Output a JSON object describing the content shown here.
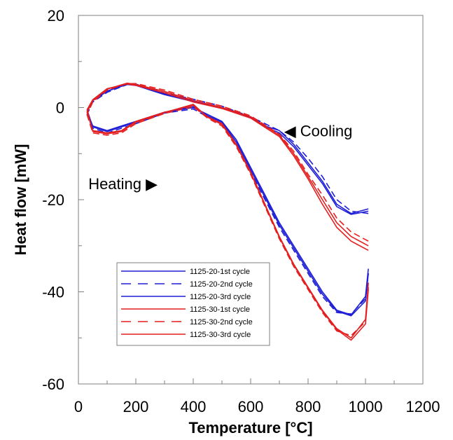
{
  "chart_data": {
    "type": "line",
    "title": "",
    "xlabel": "Temperature [°C]",
    "ylabel": "Heat flow [mW]",
    "xlim": [
      0,
      1200
    ],
    "ylim": [
      -60,
      20
    ],
    "x_ticks": [
      "0",
      "200",
      "400",
      "600",
      "800",
      "1000",
      "1200"
    ],
    "y_ticks": [
      "-60",
      "-40",
      "-20",
      "0",
      "20"
    ],
    "grid": false,
    "legend_placement": "lower-left",
    "annotations": [
      {
        "text": "Cooling",
        "arrow": "◀",
        "x": 770,
        "y": -5
      },
      {
        "text": "Heating",
        "arrow": "▶",
        "x": 620,
        "y": -16.5
      }
    ],
    "series": [
      {
        "name": "1125-20-1st cycle",
        "color": "#1f1fd6",
        "dash": "solid",
        "heating": [
          [
            30,
            -1
          ],
          [
            50,
            -4
          ],
          [
            100,
            -5
          ],
          [
            150,
            -4
          ],
          [
            200,
            -3
          ],
          [
            300,
            -1
          ],
          [
            400,
            0
          ],
          [
            450,
            -1.5
          ],
          [
            500,
            -3
          ],
          [
            550,
            -7
          ],
          [
            600,
            -13
          ],
          [
            650,
            -19
          ],
          [
            700,
            -25
          ],
          [
            750,
            -30
          ],
          [
            800,
            -35
          ],
          [
            850,
            -40
          ],
          [
            900,
            -44
          ],
          [
            950,
            -45
          ],
          [
            1000,
            -41
          ],
          [
            1010,
            -35
          ]
        ],
        "cooling": [
          [
            1010,
            -22
          ],
          [
            950,
            -23
          ],
          [
            900,
            -21
          ],
          [
            850,
            -16
          ],
          [
            800,
            -12
          ],
          [
            750,
            -8
          ],
          [
            700,
            -5
          ],
          [
            650,
            -4
          ],
          [
            600,
            -2
          ],
          [
            500,
            0
          ],
          [
            400,
            1.5
          ],
          [
            300,
            3
          ],
          [
            200,
            5
          ],
          [
            170,
            5.2
          ],
          [
            100,
            3.5
          ],
          [
            50,
            1.5
          ],
          [
            30,
            -1
          ]
        ]
      },
      {
        "name": "1125-20-2nd cycle",
        "color": "#1f1fd6",
        "dash": "dashed",
        "heating": [
          [
            30,
            -1.5
          ],
          [
            50,
            -4.5
          ],
          [
            100,
            -5.5
          ],
          [
            150,
            -4.5
          ],
          [
            200,
            -3.5
          ],
          [
            300,
            -1.2
          ],
          [
            400,
            -0.3
          ],
          [
            450,
            -2
          ],
          [
            500,
            -3.5
          ],
          [
            550,
            -8
          ],
          [
            600,
            -14
          ],
          [
            650,
            -20
          ],
          [
            700,
            -26
          ],
          [
            750,
            -31
          ],
          [
            800,
            -36
          ],
          [
            850,
            -41
          ],
          [
            900,
            -44.5
          ],
          [
            950,
            -44.8
          ],
          [
            1000,
            -41.5
          ],
          [
            1010,
            -36
          ]
        ],
        "cooling": [
          [
            1010,
            -23
          ],
          [
            950,
            -22.5
          ],
          [
            900,
            -20
          ],
          [
            850,
            -15
          ],
          [
            800,
            -11
          ],
          [
            750,
            -7.5
          ],
          [
            700,
            -5
          ],
          [
            650,
            -3.5
          ],
          [
            600,
            -2
          ],
          [
            500,
            0.3
          ],
          [
            400,
            1.8
          ],
          [
            300,
            3.2
          ],
          [
            200,
            5.1
          ],
          [
            170,
            5
          ],
          [
            100,
            3.3
          ],
          [
            50,
            1.2
          ],
          [
            30,
            -1.5
          ]
        ]
      },
      {
        "name": "1125-20-3rd cycle",
        "color": "#1f1fd6",
        "dash": "solid",
        "heating": [
          [
            30,
            -0.5
          ],
          [
            50,
            -4.2
          ],
          [
            100,
            -5.2
          ],
          [
            150,
            -4.2
          ],
          [
            200,
            -3.2
          ],
          [
            300,
            -1
          ],
          [
            400,
            0.2
          ],
          [
            450,
            -1.8
          ],
          [
            500,
            -3.2
          ],
          [
            550,
            -7.5
          ],
          [
            600,
            -13.5
          ],
          [
            650,
            -19.5
          ],
          [
            700,
            -25.5
          ],
          [
            750,
            -30.5
          ],
          [
            800,
            -35.5
          ],
          [
            850,
            -40.5
          ],
          [
            900,
            -44.2
          ],
          [
            950,
            -45.2
          ],
          [
            1000,
            -42
          ],
          [
            1010,
            -36
          ]
        ],
        "cooling": [
          [
            1010,
            -22.5
          ],
          [
            950,
            -23.2
          ],
          [
            900,
            -21.5
          ],
          [
            850,
            -16.5
          ],
          [
            800,
            -12.5
          ],
          [
            750,
            -8.5
          ],
          [
            700,
            -5.5
          ],
          [
            650,
            -4.2
          ],
          [
            600,
            -2.2
          ],
          [
            500,
            -0.2
          ],
          [
            400,
            1.3
          ],
          [
            300,
            2.8
          ],
          [
            200,
            4.8
          ],
          [
            170,
            5
          ],
          [
            100,
            3.6
          ],
          [
            50,
            1.6
          ],
          [
            30,
            -0.5
          ]
        ]
      },
      {
        "name": "1125-30-1st cycle",
        "color": "#e41f1f",
        "dash": "solid",
        "heating": [
          [
            30,
            -1
          ],
          [
            50,
            -5
          ],
          [
            100,
            -5.5
          ],
          [
            150,
            -5
          ],
          [
            200,
            -3
          ],
          [
            300,
            -1
          ],
          [
            400,
            0.5
          ],
          [
            450,
            -2
          ],
          [
            500,
            -3.5
          ],
          [
            550,
            -8
          ],
          [
            600,
            -14
          ],
          [
            650,
            -21
          ],
          [
            700,
            -28
          ],
          [
            750,
            -34
          ],
          [
            800,
            -39
          ],
          [
            850,
            -44
          ],
          [
            900,
            -48
          ],
          [
            950,
            -50
          ],
          [
            1000,
            -46
          ],
          [
            1010,
            -38
          ]
        ],
        "cooling": [
          [
            1010,
            -30
          ],
          [
            950,
            -28
          ],
          [
            900,
            -25
          ],
          [
            850,
            -20
          ],
          [
            800,
            -15
          ],
          [
            750,
            -10
          ],
          [
            700,
            -6
          ],
          [
            650,
            -4
          ],
          [
            600,
            -2
          ],
          [
            500,
            0
          ],
          [
            400,
            1.5
          ],
          [
            300,
            3.5
          ],
          [
            200,
            5
          ],
          [
            170,
            5.3
          ],
          [
            100,
            4
          ],
          [
            50,
            1.5
          ],
          [
            30,
            -1
          ]
        ]
      },
      {
        "name": "1125-30-2nd cycle",
        "color": "#e41f1f",
        "dash": "dashed",
        "heating": [
          [
            30,
            -1.5
          ],
          [
            50,
            -5.5
          ],
          [
            100,
            -6
          ],
          [
            150,
            -5.5
          ],
          [
            200,
            -3.5
          ],
          [
            300,
            -1.3
          ],
          [
            400,
            0.2
          ],
          [
            450,
            -2.3
          ],
          [
            500,
            -4
          ],
          [
            550,
            -8.5
          ],
          [
            600,
            -14.5
          ],
          [
            650,
            -21.5
          ],
          [
            700,
            -28.5
          ],
          [
            750,
            -34.5
          ],
          [
            800,
            -39.5
          ],
          [
            850,
            -44.5
          ],
          [
            900,
            -48.5
          ],
          [
            950,
            -49.5
          ],
          [
            1000,
            -46.5
          ],
          [
            1010,
            -39
          ]
        ],
        "cooling": [
          [
            1010,
            -29
          ],
          [
            950,
            -27
          ],
          [
            900,
            -24
          ],
          [
            850,
            -19
          ],
          [
            800,
            -14.5
          ],
          [
            750,
            -9.5
          ],
          [
            700,
            -5.8
          ],
          [
            650,
            -3.8
          ],
          [
            600,
            -1.8
          ],
          [
            500,
            0.3
          ],
          [
            400,
            1.8
          ],
          [
            300,
            3.8
          ],
          [
            200,
            5.2
          ],
          [
            170,
            5.2
          ],
          [
            100,
            3.8
          ],
          [
            50,
            1.2
          ],
          [
            30,
            -1.5
          ]
        ]
      },
      {
        "name": "1125-30-3rd cycle",
        "color": "#e41f1f",
        "dash": "solid",
        "heating": [
          [
            30,
            -0.5
          ],
          [
            50,
            -5.2
          ],
          [
            100,
            -5.7
          ],
          [
            150,
            -5.2
          ],
          [
            200,
            -3.2
          ],
          [
            300,
            -1.1
          ],
          [
            400,
            0.7
          ],
          [
            450,
            -2.1
          ],
          [
            500,
            -3.7
          ],
          [
            550,
            -8.2
          ],
          [
            600,
            -14.2
          ],
          [
            650,
            -21.2
          ],
          [
            700,
            -28.2
          ],
          [
            750,
            -34.2
          ],
          [
            800,
            -39.2
          ],
          [
            850,
            -44.2
          ],
          [
            900,
            -48.2
          ],
          [
            950,
            -50.5
          ],
          [
            1000,
            -47
          ],
          [
            1010,
            -39.5
          ]
        ],
        "cooling": [
          [
            1010,
            -31
          ],
          [
            950,
            -29
          ],
          [
            900,
            -26
          ],
          [
            850,
            -21
          ],
          [
            800,
            -15.5
          ],
          [
            750,
            -10.5
          ],
          [
            700,
            -6.3
          ],
          [
            650,
            -4.3
          ],
          [
            600,
            -2.3
          ],
          [
            500,
            -0.2
          ],
          [
            400,
            1.2
          ],
          [
            300,
            3.2
          ],
          [
            200,
            4.8
          ],
          [
            170,
            5.1
          ],
          [
            100,
            4.1
          ],
          [
            50,
            1.7
          ],
          [
            30,
            -0.5
          ]
        ]
      }
    ]
  }
}
